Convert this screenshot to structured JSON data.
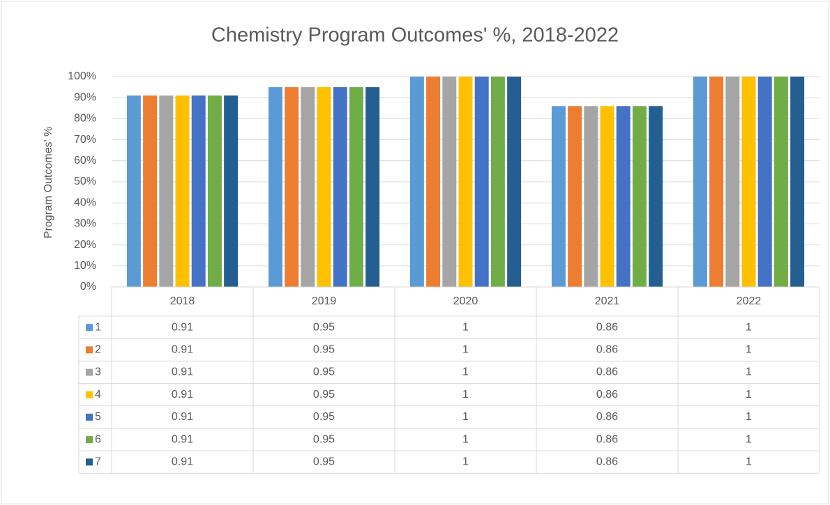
{
  "chart_data": {
    "type": "bar",
    "title": "Chemistry Program Outcomes' %, 2018-2022",
    "y_label": "Program Outcomes' %",
    "categories": [
      "2018",
      "2019",
      "2020",
      "2021",
      "2022"
    ],
    "series": [
      {
        "name": "1",
        "color": "#5b9bd5",
        "values": [
          0.91,
          0.95,
          1,
          0.86,
          1
        ]
      },
      {
        "name": "2",
        "color": "#ed7d31",
        "values": [
          0.91,
          0.95,
          1,
          0.86,
          1
        ]
      },
      {
        "name": "3",
        "color": "#a5a5a5",
        "values": [
          0.91,
          0.95,
          1,
          0.86,
          1
        ]
      },
      {
        "name": "4",
        "color": "#ffc000",
        "values": [
          0.91,
          0.95,
          1,
          0.86,
          1
        ]
      },
      {
        "name": "5",
        "color": "#4472c4",
        "values": [
          0.91,
          0.95,
          1,
          0.86,
          1
        ]
      },
      {
        "name": "6",
        "color": "#70ad47",
        "values": [
          0.91,
          0.95,
          1,
          0.86,
          1
        ]
      },
      {
        "name": "7",
        "color": "#255e91",
        "values": [
          0.91,
          0.95,
          1,
          0.86,
          1
        ]
      }
    ],
    "ylim": [
      0,
      1
    ],
    "yticks": [
      {
        "value": 0,
        "label": "0%"
      },
      {
        "value": 0.1,
        "label": "10%"
      },
      {
        "value": 0.2,
        "label": "20%"
      },
      {
        "value": 0.3,
        "label": "30%"
      },
      {
        "value": 0.4,
        "label": "40%"
      },
      {
        "value": 0.5,
        "label": "50%"
      },
      {
        "value": 0.6,
        "label": "60%"
      },
      {
        "value": 0.7,
        "label": "70%"
      },
      {
        "value": 0.8,
        "label": "80%"
      },
      {
        "value": 0.9,
        "label": "90%"
      },
      {
        "value": 1,
        "label": "100%"
      }
    ],
    "grid": true,
    "data_table": true
  }
}
